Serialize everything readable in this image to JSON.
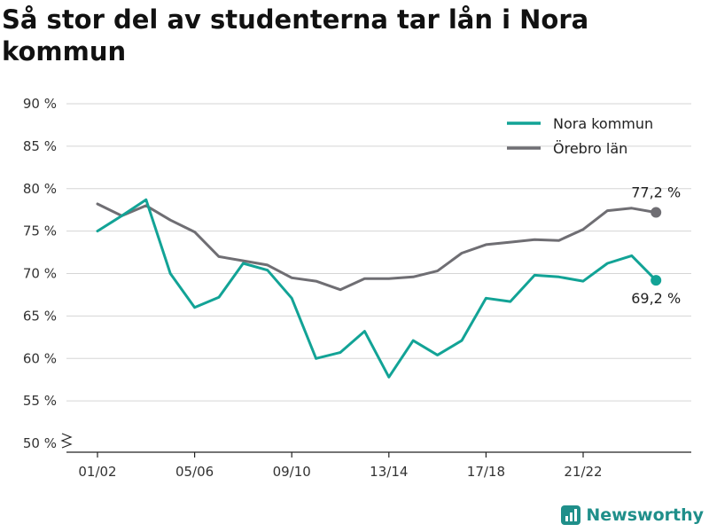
{
  "page": {
    "title": "Så stor del av studenterna tar lån i Nora kommun",
    "brand": "Newsworthy"
  },
  "chart_data": {
    "type": "line",
    "title": "Så stor del av studenterna tar lån i Nora kommun",
    "x_tick_labels": [
      "01/02",
      "05/06",
      "09/10",
      "13/14",
      "17/18",
      "21/22"
    ],
    "y_ticks": [
      "50 %",
      "55 %",
      "60 %",
      "65 %",
      "70 %",
      "75 %",
      "80 %",
      "85 %",
      "90 %"
    ],
    "ylim": [
      50,
      90
    ],
    "y_axis_broken": true,
    "grid": true,
    "legend_position": "top-right",
    "x": [
      "01/02",
      "02/03",
      "03/04",
      "04/05",
      "05/06",
      "06/07",
      "07/08",
      "08/09",
      "09/10",
      "10/11",
      "11/12",
      "12/13",
      "13/14",
      "14/15",
      "15/16",
      "16/17",
      "17/18",
      "18/19",
      "19/20",
      "20/21",
      "21/22",
      "22/23",
      "23/24",
      "24/25"
    ],
    "series": [
      {
        "name": "Nora kommun",
        "color": "#12a396",
        "values": [
          75.0,
          76.8,
          78.7,
          70.0,
          66.0,
          67.2,
          71.2,
          70.4,
          67.1,
          60.0,
          60.7,
          63.2,
          57.8,
          62.1,
          60.4,
          62.1,
          67.1,
          66.7,
          69.8,
          69.6,
          69.1,
          71.2,
          72.1,
          69.2
        ],
        "end_label": "69,2 %"
      },
      {
        "name": "Örebro län",
        "color": "#6f6e73",
        "values": [
          78.2,
          76.8,
          78.0,
          76.3,
          74.9,
          72.0,
          71.5,
          71.0,
          69.5,
          69.1,
          68.1,
          69.4,
          69.4,
          69.6,
          70.3,
          72.4,
          73.4,
          73.7,
          74.0,
          73.9,
          75.2,
          77.4,
          77.7,
          77.2
        ],
        "end_label": "77,2 %"
      }
    ]
  }
}
